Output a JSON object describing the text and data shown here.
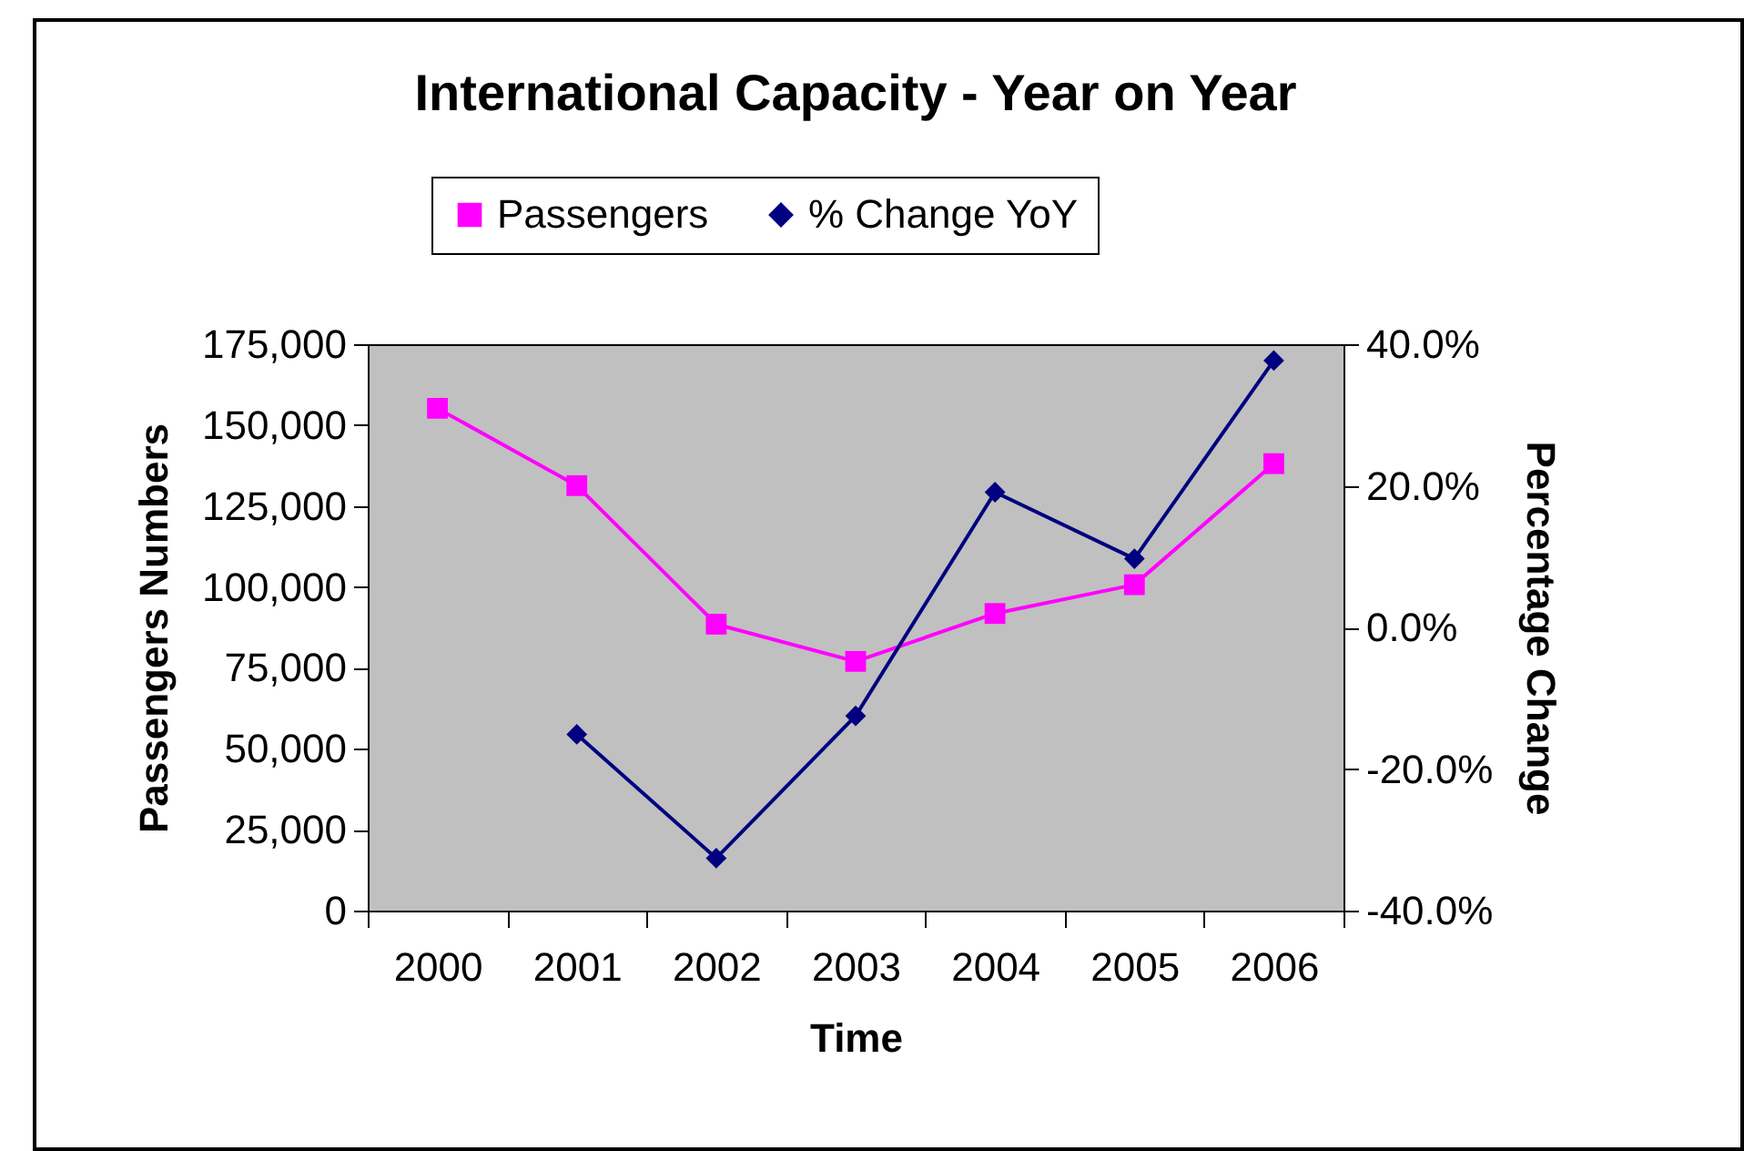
{
  "chart_data": {
    "type": "line",
    "title": "International Capacity - Year on Year",
    "xlabel": "Time",
    "ylabel": "Passengers Numbers",
    "y2label": "Percentage Change",
    "categories": [
      "2000",
      "2001",
      "2002",
      "2003",
      "2004",
      "2005",
      "2006"
    ],
    "series": [
      {
        "name": "Passengers",
        "color": "#ff00ff",
        "marker": "square",
        "values": [
          155200,
          131300,
          88500,
          77000,
          91800,
          100700,
          138100
        ]
      },
      {
        "name": "% Change YoY",
        "color": "#000080",
        "marker": "diamond",
        "axis": "y2",
        "values": [
          null,
          -15.1,
          -32.6,
          -12.5,
          19.1,
          9.7,
          37.7
        ]
      }
    ],
    "ylim": [
      0,
      175000
    ],
    "yticks": [
      {
        "value": 0,
        "label": "0"
      },
      {
        "value": 25000,
        "label": "25,000"
      },
      {
        "value": 50000,
        "label": "50,000"
      },
      {
        "value": 75000,
        "label": "75,000"
      },
      {
        "value": 100000,
        "label": "100,000"
      },
      {
        "value": 125000,
        "label": "125,000"
      },
      {
        "value": 150000,
        "label": "150,000"
      },
      {
        "value": 175000,
        "label": "175,000"
      }
    ],
    "y2lim": [
      -40,
      40
    ],
    "y2ticks": [
      {
        "value": -40,
        "label": "-40.0%"
      },
      {
        "value": -20,
        "label": "-20.0%"
      },
      {
        "value": 0,
        "label": "0.0%"
      },
      {
        "value": 20,
        "label": "20.0%"
      },
      {
        "value": 40,
        "label": "40.0%"
      }
    ],
    "legend": "top"
  }
}
